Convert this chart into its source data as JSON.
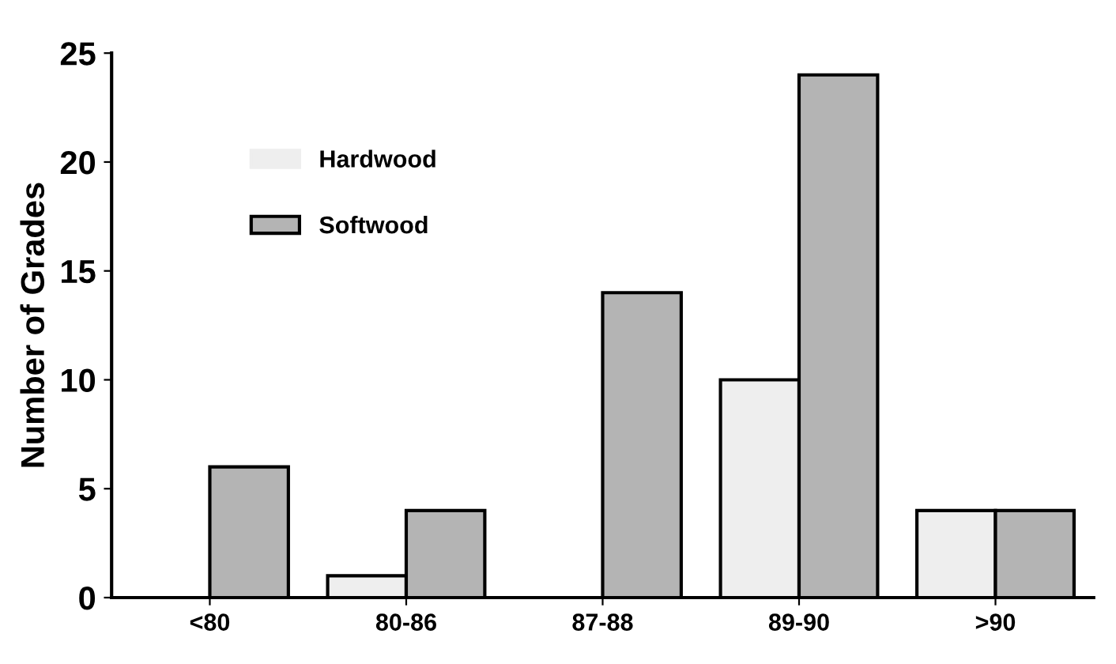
{
  "chart_data": {
    "type": "bar",
    "ylabel": "Number of Grades",
    "categories": [
      "<80",
      "80-86",
      "87-88",
      "89-90",
      ">90"
    ],
    "series": [
      {
        "name": "Hardwood",
        "color": "#eeeeee",
        "values": [
          0,
          1,
          0,
          10,
          4
        ]
      },
      {
        "name": "Softwood",
        "color": "#b4b4b4",
        "values": [
          6,
          4,
          14,
          24,
          4
        ]
      }
    ],
    "ylim": [
      0,
      25
    ],
    "yticks": [
      0,
      5,
      10,
      15,
      20,
      25
    ],
    "grid": false,
    "legend": "top left"
  }
}
